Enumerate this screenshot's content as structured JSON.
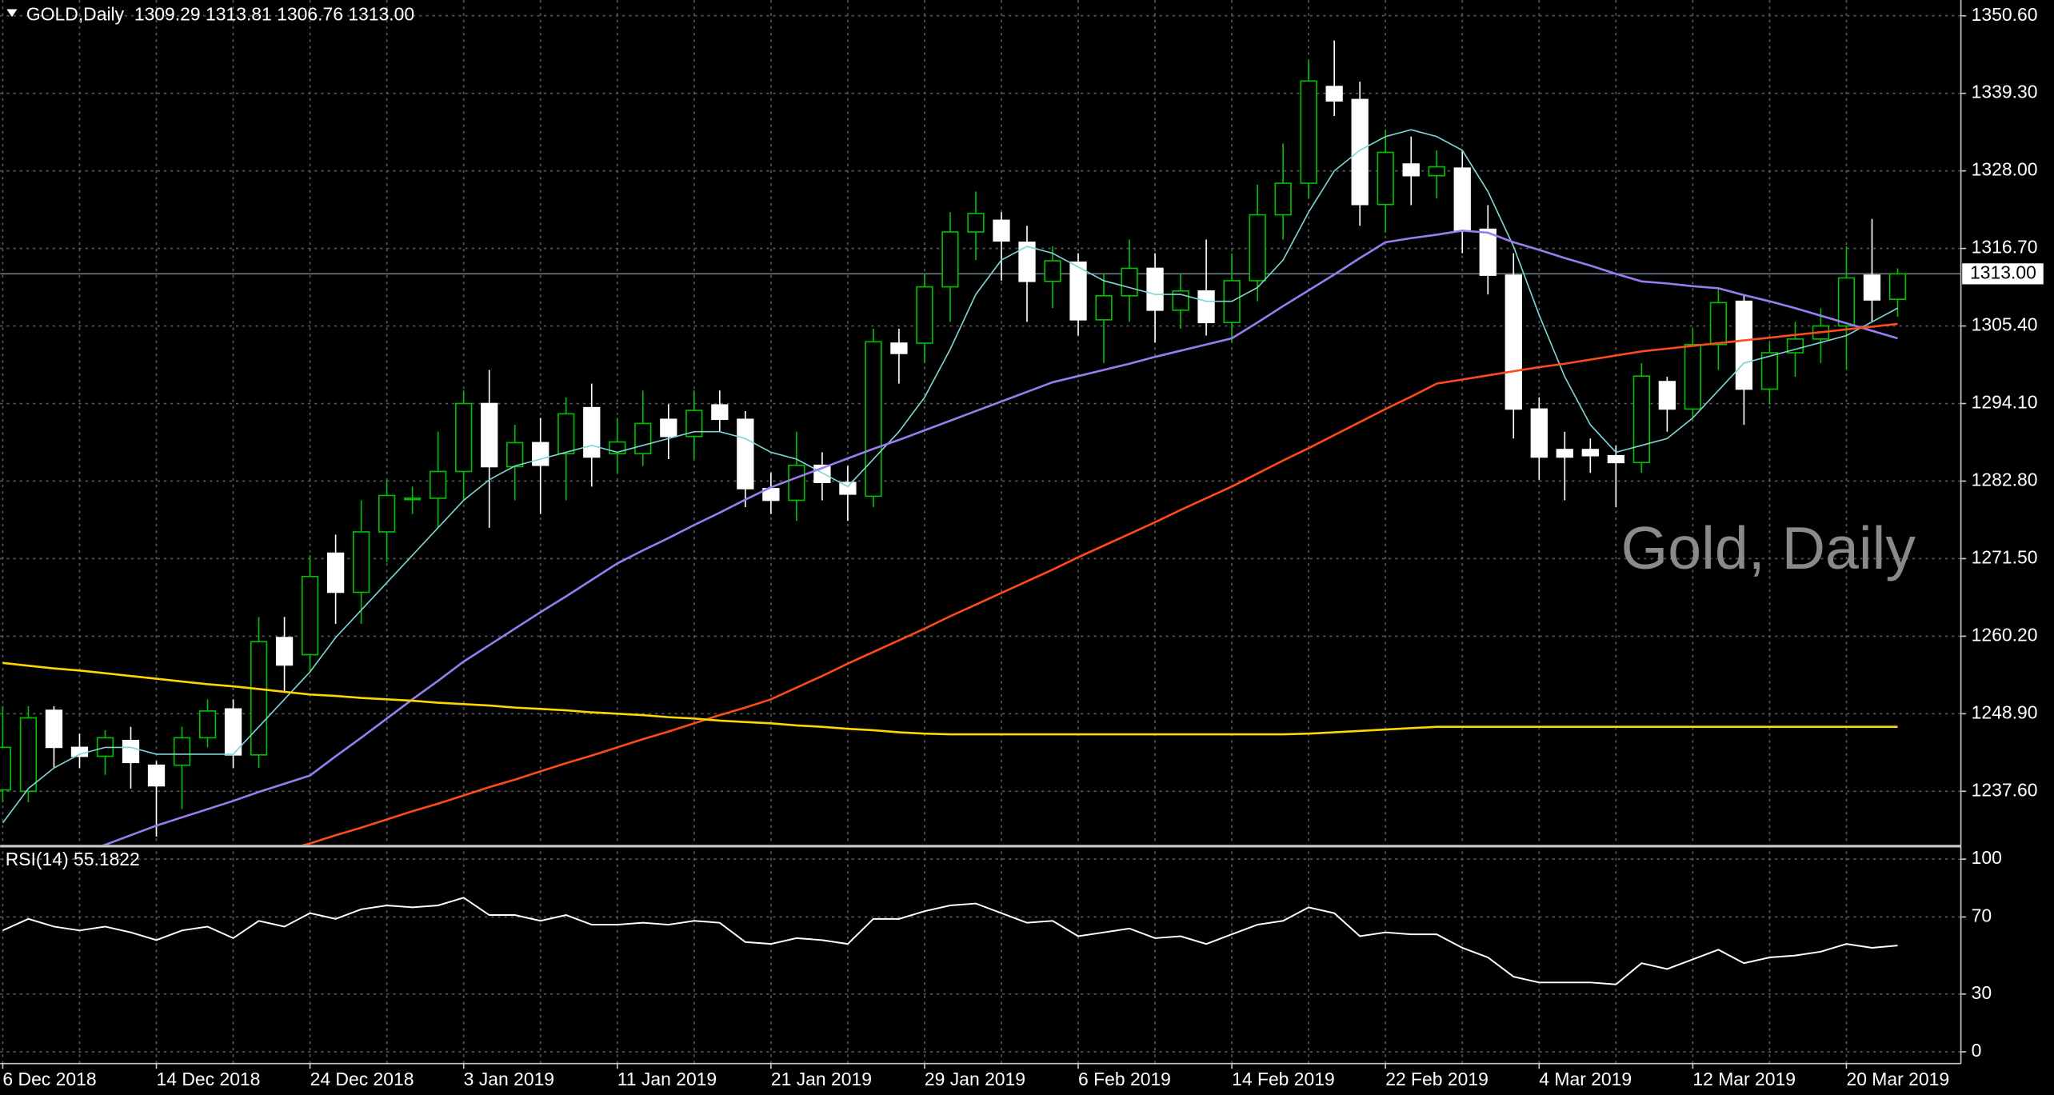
{
  "chart_data": [
    {
      "type": "candlestick",
      "title": "GOLD,Daily  1309.29 1313.81 1306.76 1313.00",
      "watermark": "Gold, Daily",
      "categories": [
        "6 Dec 2018",
        null,
        null,
        null,
        null,
        null,
        "14 Dec 2018",
        null,
        null,
        null,
        null,
        null,
        "24 Dec 2018",
        null,
        null,
        null,
        null,
        null,
        "3 Jan 2019",
        null,
        null,
        null,
        null,
        null,
        "11 Jan 2019",
        null,
        null,
        null,
        null,
        null,
        "21 Jan 2019",
        null,
        null,
        null,
        null,
        null,
        "29 Jan 2019",
        null,
        null,
        null,
        null,
        null,
        "6 Feb 2019",
        null,
        null,
        null,
        null,
        null,
        "14 Feb 2019",
        null,
        null,
        null,
        null,
        null,
        "22 Feb 2019",
        null,
        null,
        null,
        null,
        null,
        "4 Mar 2019",
        null,
        null,
        null,
        null,
        null,
        "12 Mar 2019",
        null,
        null,
        null,
        null,
        null,
        "20 Mar 2019",
        null,
        null
      ],
      "open": [
        1237.8,
        1237.6,
        1249.4,
        1244,
        1242.7,
        1245,
        1241.4,
        1241.4,
        1245.4,
        1249.6,
        1242.9,
        1260,
        1257.5,
        1272.3,
        1266.6,
        1275.4,
        1280.1,
        1280.3,
        1284.2,
        1294.1,
        1284.9,
        1288.4,
        1286.8,
        1293.5,
        1286.8,
        1286.8,
        1291.8,
        1289.3,
        1293.9,
        1291.8,
        1281.7,
        1280,
        1285.1,
        1282.6,
        1280.6,
        1302.9,
        1302.9,
        1311.1,
        1319.1,
        1320.8,
        1317.6,
        1311.9,
        1314.7,
        1306.3,
        1309.8,
        1313.8,
        1307.7,
        1310.5,
        1305.9,
        1312,
        1321.6,
        1326.2,
        1340.3,
        1338.4,
        1323.1,
        1329,
        1327.3,
        1328.4,
        1319.5,
        1312.8,
        1293.3,
        1287.4,
        1287.4,
        1286.5,
        1285.5,
        1297.3,
        1293.3,
        1302.7,
        1309,
        1296.2,
        1301.5,
        1303.5,
        1305.4,
        1312.8,
        1309.29
      ],
      "high": [
        1250,
        1250,
        1250,
        1246,
        1246.5,
        1247,
        1242,
        1247,
        1251,
        1251,
        1263,
        1263,
        1272,
        1275,
        1280,
        1283,
        1282,
        1290,
        1296,
        1299,
        1291,
        1292,
        1295,
        1297,
        1292,
        1296,
        1294,
        1296,
        1296,
        1293,
        1284,
        1290,
        1287,
        1285,
        1305,
        1305,
        1313,
        1322,
        1325,
        1322,
        1320,
        1317,
        1316,
        1313,
        1318,
        1316,
        1313,
        1318,
        1316,
        1326,
        1332,
        1344,
        1347,
        1341,
        1334,
        1333,
        1331,
        1331,
        1323,
        1316,
        1295,
        1290,
        1289,
        1288,
        1300,
        1298,
        1305,
        1311,
        1310,
        1303,
        1306,
        1308,
        1317,
        1321,
        1313.81
      ],
      "low": [
        1236,
        1236,
        1241,
        1241,
        1240,
        1238,
        1231,
        1235,
        1244,
        1241,
        1241,
        1252,
        1255,
        1262,
        1262,
        1271,
        1278,
        1276,
        1280,
        1276,
        1280,
        1278,
        1280,
        1282,
        1284,
        1285,
        1286,
        1286,
        1290,
        1279,
        1278,
        1277,
        1280,
        1277,
        1279,
        1297,
        1300,
        1306,
        1315,
        1312,
        1306,
        1308,
        1304,
        1300,
        1306,
        1303,
        1305,
        1304,
        1303,
        1309,
        1318,
        1324,
        1336,
        1320,
        1319,
        1323,
        1324,
        1316,
        1310,
        1289,
        1283,
        1280,
        1284,
        1279,
        1284,
        1290,
        1292,
        1299,
        1291,
        1294,
        1298,
        1300,
        1299,
        1306,
        1306.76
      ],
      "close": [
        1244,
        1248.3,
        1244,
        1242.7,
        1245.4,
        1241.8,
        1238.4,
        1245.4,
        1249.3,
        1242.9,
        1259.4,
        1256,
        1268.9,
        1266.6,
        1275.4,
        1280.7,
        1280.3,
        1284.2,
        1294.1,
        1284.9,
        1288.4,
        1285.1,
        1292.6,
        1286.3,
        1288.5,
        1291.2,
        1289.3,
        1293.1,
        1291.8,
        1281.7,
        1280,
        1285.1,
        1282.6,
        1280.9,
        1303.1,
        1301.4,
        1311.1,
        1319.1,
        1321.8,
        1317.8,
        1311.9,
        1314.9,
        1306.3,
        1309.8,
        1313.8,
        1307.7,
        1310.5,
        1305.9,
        1312,
        1321.6,
        1326.2,
        1341.1,
        1338.2,
        1323.1,
        1330.7,
        1327.3,
        1328.6,
        1319.3,
        1312.8,
        1293.3,
        1286.3,
        1286.3,
        1286.5,
        1285.5,
        1298.1,
        1293.3,
        1302.7,
        1308.8,
        1296.2,
        1301.5,
        1303.5,
        1305.4,
        1312.4,
        1309.2,
        1313
      ],
      "up_color": "#00c000",
      "down_color": "#ffffff",
      "overlays": [
        {
          "color": "#7fd4d4",
          "values": [
            1233,
            1238,
            1241,
            1243,
            1244,
            1244,
            1243,
            1243,
            1243,
            1243,
            1247,
            1251,
            1255,
            1260,
            1264,
            1268,
            1272,
            1276,
            1280,
            1283,
            1285,
            1286,
            1287,
            1288,
            1287,
            1288,
            1289,
            1290,
            1290,
            1289,
            1287,
            1286,
            1284,
            1282,
            1286,
            1290,
            1295,
            1302,
            1310,
            1315,
            1317,
            1316,
            1314,
            1312,
            1311,
            1310,
            1310,
            1309,
            1309,
            1311,
            1315,
            1322,
            1328,
            1331,
            1333,
            1334,
            1333,
            1331,
            1325,
            1317,
            1307,
            1298,
            1291,
            1287,
            1288,
            1289,
            1292,
            1296,
            1300,
            1301,
            1302,
            1303,
            1304,
            1306,
            1308
          ]
        },
        {
          "color": "#9a7cf0",
          "values": [
            1225,
            1226.2,
            1227.4,
            1228.6,
            1229.8,
            1231.2,
            1232.6,
            1233.8,
            1235,
            1236.2,
            1237.5,
            1238.7,
            1239.9,
            1242.7,
            1245.4,
            1248.2,
            1251,
            1253.7,
            1256.5,
            1258.9,
            1261.3,
            1263.7,
            1266,
            1268.4,
            1270.8,
            1272.7,
            1274.5,
            1276.4,
            1278.2,
            1280.1,
            1281.9,
            1283.3,
            1284.7,
            1286.1,
            1287.5,
            1288.8,
            1290.2,
            1291.6,
            1293,
            1294.4,
            1295.8,
            1297.2,
            1298.1,
            1299,
            1299.9,
            1300.9,
            1301.8,
            1302.7,
            1303.6,
            1305.9,
            1308.3,
            1310.6,
            1312.9,
            1315.3,
            1317.6,
            1318.2,
            1318.7,
            1319.3,
            1319,
            1317.6,
            1316.5,
            1315.3,
            1314.2,
            1313,
            1311.9,
            1311.6,
            1311.2,
            1310.9,
            1309.9,
            1309,
            1308,
            1306.9,
            1305.8,
            1304.7,
            1303.6
          ]
        },
        {
          "color": "#ff4a1a",
          "values": [
            null,
            null,
            null,
            null,
            null,
            null,
            null,
            null,
            null,
            null,
            null,
            1229,
            1230,
            1231.2,
            1232.3,
            1233.5,
            1234.7,
            1235.8,
            1237,
            1238.2,
            1239.3,
            1240.5,
            1241.7,
            1242.8,
            1244,
            1245.2,
            1246.3,
            1247.5,
            1248.7,
            1249.8,
            1251,
            1252.7,
            1254.4,
            1256.2,
            1257.9,
            1259.6,
            1261.3,
            1263.1,
            1264.8,
            1266.5,
            1268.2,
            1269.9,
            1271.7,
            1273.4,
            1275.1,
            1276.8,
            1278.6,
            1280.3,
            1282,
            1283.9,
            1285.8,
            1287.6,
            1289.5,
            1291.4,
            1293.3,
            1295.1,
            1297,
            1297.6,
            1298.2,
            1298.8,
            1299.4,
            1299.9,
            1300.5,
            1301.1,
            1301.7,
            1302.1,
            1302.5,
            1302.9,
            1303.3,
            1303.7,
            1304.1,
            1304.5,
            1304.9,
            1305.3,
            1305.7
          ]
        },
        {
          "color": "#ffd700",
          "values": [
            1256.3,
            1255.9,
            1255.5,
            1255.2,
            1254.8,
            1254.4,
            1254,
            1253.6,
            1253.2,
            1252.9,
            1252.5,
            1252.1,
            1251.7,
            1251.5,
            1251.2,
            1251,
            1250.8,
            1250.5,
            1250.3,
            1250.1,
            1249.8,
            1249.6,
            1249.4,
            1249.1,
            1248.9,
            1248.7,
            1248.4,
            1248.2,
            1247.9,
            1247.7,
            1247.5,
            1247.2,
            1247,
            1246.7,
            1246.5,
            1246.2,
            1246,
            1245.9,
            1245.9,
            1245.9,
            1245.9,
            1245.9,
            1245.9,
            1245.9,
            1245.9,
            1245.9,
            1245.9,
            1245.9,
            1245.9,
            1245.9,
            1245.9,
            1246,
            1246.2,
            1246.4,
            1246.6,
            1246.8,
            1247,
            1247,
            1247,
            1247,
            1247,
            1247,
            1247,
            1247,
            1247,
            1247,
            1247,
            1247,
            1247,
            1247,
            1247,
            1247,
            1247,
            1247,
            1247
          ]
        }
      ],
      "last_price": {
        "value": 1313,
        "label": "1313.00"
      },
      "ylim": [
        1229.8,
        1352.9
      ],
      "yticks": [
        {
          "value": 1350.6,
          "label": "1350.60"
        },
        {
          "value": 1339.3,
          "label": "1339.30"
        },
        {
          "value": 1328,
          "label": "1328.00"
        },
        {
          "value": 1316.7,
          "label": "1316.70"
        },
        {
          "value": 1305.4,
          "label": "1305.40"
        },
        {
          "value": 1294.1,
          "label": "1294.10"
        },
        {
          "value": 1282.8,
          "label": "1282.80"
        },
        {
          "value": 1271.5,
          "label": "1271.50"
        },
        {
          "value": 1260.2,
          "label": "1260.20"
        },
        {
          "value": 1248.9,
          "label": "1248.90"
        },
        {
          "value": 1237.6,
          "label": "1237.60"
        }
      ],
      "grid": true
    },
    {
      "type": "line",
      "title": "RSI(14) 55.1822",
      "color": "#ffffff",
      "values": [
        63,
        69,
        65,
        63,
        65,
        62,
        58,
        63,
        65,
        59,
        68,
        65,
        72,
        69,
        74,
        76,
        75,
        76,
        80,
        71,
        71,
        68,
        71,
        66,
        66,
        67,
        66,
        68,
        67,
        57,
        56,
        59,
        58,
        56,
        69,
        69,
        73,
        76,
        77,
        72,
        67,
        68,
        60,
        62,
        64,
        59,
        60,
        56,
        61,
        66,
        68,
        75,
        72,
        60,
        62,
        61,
        61,
        54,
        49,
        39,
        36,
        36,
        36,
        35,
        46,
        43,
        48,
        53,
        46,
        49,
        50,
        52,
        56,
        54,
        55.1822
      ],
      "ylim": [
        -6.1,
        106.1
      ],
      "yticks": [
        100,
        70,
        30,
        0
      ],
      "grid": true
    }
  ]
}
